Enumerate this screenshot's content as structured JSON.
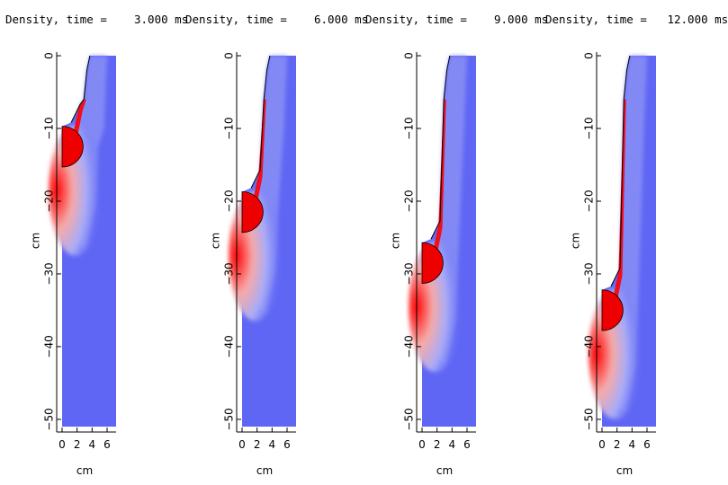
{
  "chart_data": [
    {
      "type": "heatmap",
      "title": "Density, time =    3.000 ms",
      "xlabel": "cm",
      "ylabel": "cm",
      "xlim": [
        0,
        7.2
      ],
      "ylim": [
        -51,
        0.5
      ],
      "x_ticks": [
        "0",
        "2",
        "4",
        "6"
      ],
      "y_ticks": [
        "0",
        "−10",
        "−20",
        "−30",
        "−40",
        "−50"
      ],
      "colors": {
        "background": "#5f66f4",
        "mid": "#a8acf8",
        "high": "#ff0000"
      },
      "sphere_center_y": -12.5,
      "sphere_radius": 2.8,
      "wall_top_y": 0
    },
    {
      "type": "heatmap",
      "title": "Density, time =    6.000 ms",
      "xlabel": "cm",
      "ylabel": "cm",
      "xlim": [
        0,
        7.2
      ],
      "ylim": [
        -51,
        0.5
      ],
      "x_ticks": [
        "0",
        "2",
        "4",
        "6"
      ],
      "y_ticks": [
        "0",
        "−10",
        "−20",
        "−30",
        "−40",
        "−50"
      ],
      "colors": {
        "background": "#5f66f4",
        "mid": "#a8acf8",
        "high": "#ff0000"
      },
      "sphere_center_y": -21.5,
      "sphere_radius": 2.8,
      "wall_top_y": 0
    },
    {
      "type": "heatmap",
      "title": "Density, time =    9.000 ms",
      "xlabel": "cm",
      "ylabel": "cm",
      "xlim": [
        0,
        7.2
      ],
      "ylim": [
        -51,
        0.5
      ],
      "x_ticks": [
        "0",
        "2",
        "4",
        "6"
      ],
      "y_ticks": [
        "0",
        "−10",
        "−20",
        "−30",
        "−40",
        "−50"
      ],
      "colors": {
        "background": "#5f66f4",
        "mid": "#a8acf8",
        "high": "#ff0000"
      },
      "sphere_center_y": -28.5,
      "sphere_radius": 2.8,
      "wall_top_y": 0
    },
    {
      "type": "heatmap",
      "title": "Density, time =   12.000 ms",
      "xlabel": "cm",
      "ylabel": "cm",
      "xlim": [
        0,
        7.2
      ],
      "ylim": [
        -51,
        0.5
      ],
      "x_ticks": [
        "0",
        "2",
        "4",
        "6"
      ],
      "y_ticks": [
        "0",
        "−10",
        "−20",
        "−30",
        "−40",
        "−50"
      ],
      "colors": {
        "background": "#5f66f4",
        "mid": "#a8acf8",
        "high": "#ff0000"
      },
      "sphere_center_y": -35,
      "sphere_radius": 2.8,
      "wall_top_y": 0
    }
  ]
}
